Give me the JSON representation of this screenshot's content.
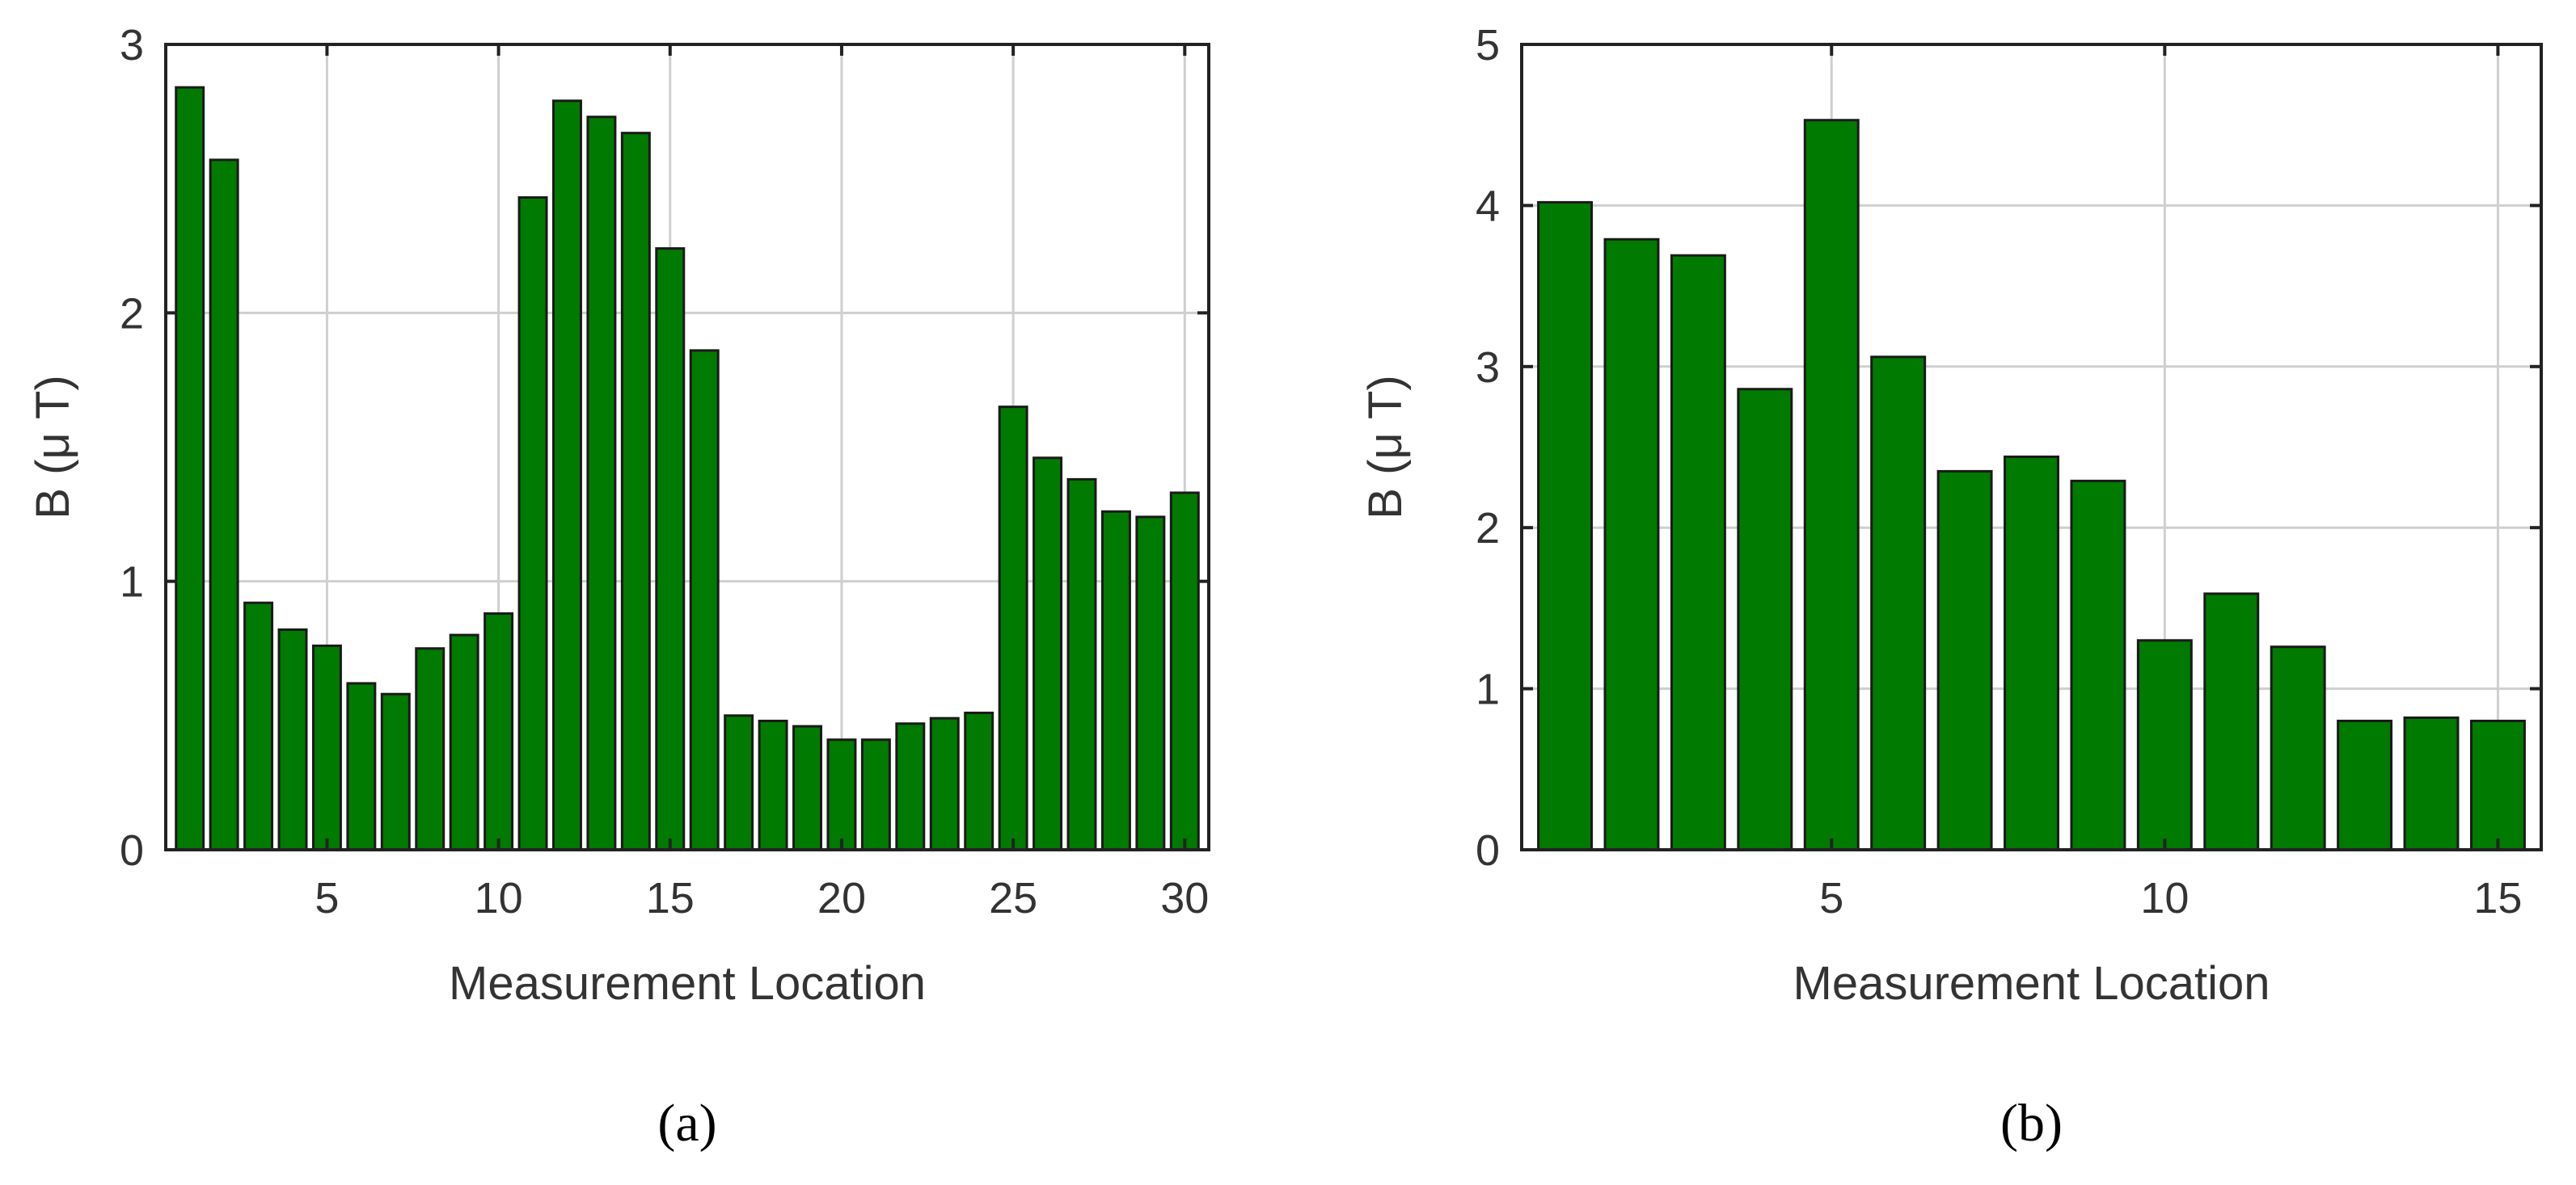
{
  "colors": {
    "bar_fill": "#007a00",
    "bar_edge": "#1a1a1a",
    "grid": "#cfcfcf",
    "axes": "#222222"
  },
  "chart_data": [
    {
      "type": "bar",
      "panel_label": "(a)",
      "xlabel": "Measurement Location",
      "ylabel": "B (μ T)",
      "x": [
        1,
        2,
        3,
        4,
        5,
        6,
        7,
        8,
        9,
        10,
        11,
        12,
        13,
        14,
        15,
        16,
        17,
        18,
        19,
        20,
        21,
        22,
        23,
        24,
        25,
        26,
        27,
        28,
        29,
        30
      ],
      "values": [
        2.84,
        2.57,
        0.92,
        0.82,
        0.76,
        0.62,
        0.58,
        0.75,
        0.8,
        0.88,
        2.43,
        2.79,
        2.73,
        2.67,
        2.24,
        1.86,
        0.5,
        0.48,
        0.46,
        0.41,
        0.41,
        0.47,
        0.49,
        0.51,
        1.65,
        1.46,
        1.38,
        1.26,
        1.24,
        1.33
      ],
      "xlim": [
        0.3,
        30.7
      ],
      "ylim": [
        0,
        3
      ],
      "xticks": [
        5,
        10,
        15,
        20,
        25,
        30
      ],
      "yticks": [
        0,
        1,
        2,
        3
      ],
      "grid": true
    },
    {
      "type": "bar",
      "panel_label": "(b)",
      "xlabel": "Measurement Location",
      "ylabel": "B (μ T)",
      "x": [
        1,
        2,
        3,
        4,
        5,
        6,
        7,
        8,
        9,
        10,
        11,
        12,
        13,
        14,
        15
      ],
      "values": [
        4.02,
        3.79,
        3.69,
        2.86,
        4.53,
        3.06,
        2.35,
        2.44,
        2.29,
        1.3,
        1.59,
        1.26,
        0.8,
        0.82,
        0.8
      ],
      "xlim": [
        0.35,
        15.65
      ],
      "ylim": [
        0,
        5
      ],
      "xticks": [
        5,
        10,
        15
      ],
      "yticks": [
        0,
        1,
        2,
        3,
        4,
        5
      ],
      "grid": true
    }
  ]
}
